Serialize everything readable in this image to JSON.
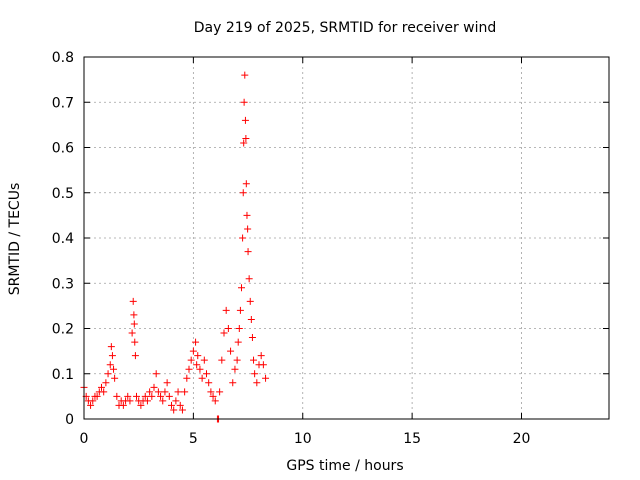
{
  "chart_data": {
    "type": "scatter",
    "title": "Day 219 of 2025, SRMTID for receiver wind",
    "xlabel": "GPS time / hours",
    "ylabel": "SRMTID / TECUs",
    "xlim": [
      0,
      24
    ],
    "ylim": [
      0,
      0.8
    ],
    "xticks": [
      0,
      5,
      10,
      15,
      20
    ],
    "xtick_labels": [
      "0",
      "5",
      "10",
      "15",
      "20"
    ],
    "yticks": [
      0,
      0.1,
      0.2,
      0.3,
      0.4,
      0.5,
      0.6,
      0.7,
      0.8
    ],
    "ytick_labels": [
      "0",
      "0.1",
      "0.2",
      "0.3",
      "0.4",
      "0.5",
      "0.6",
      "0.7",
      "0.8"
    ],
    "grid": true,
    "marker": "+",
    "color": "#ff0000",
    "series": [
      {
        "name": "wind",
        "x": [
          0.0,
          0.1,
          0.2,
          0.3,
          0.4,
          0.5,
          0.6,
          0.7,
          0.8,
          0.9,
          1.0,
          1.1,
          1.2,
          1.25,
          1.3,
          1.35,
          1.4,
          1.5,
          1.6,
          1.7,
          1.8,
          1.9,
          2.0,
          2.1,
          2.2,
          2.25,
          2.28,
          2.3,
          2.32,
          2.35,
          2.4,
          2.5,
          2.6,
          2.7,
          2.8,
          2.9,
          3.0,
          3.1,
          3.2,
          3.3,
          3.4,
          3.5,
          3.6,
          3.7,
          3.8,
          3.9,
          4.0,
          4.1,
          4.2,
          4.3,
          4.4,
          4.5,
          4.6,
          4.7,
          4.8,
          4.9,
          5.0,
          5.1,
          5.15,
          5.2,
          5.3,
          5.4,
          5.5,
          5.6,
          5.7,
          5.8,
          5.9,
          6.0,
          6.1,
          6.15,
          6.2,
          6.3,
          6.4,
          6.5,
          6.6,
          6.7,
          6.8,
          6.9,
          7.0,
          7.05,
          7.1,
          7.15,
          7.2,
          7.25,
          7.28,
          7.3,
          7.32,
          7.35,
          7.38,
          7.4,
          7.42,
          7.45,
          7.48,
          7.5,
          7.55,
          7.6,
          7.65,
          7.7,
          7.75,
          7.8,
          7.9,
          8.0,
          8.1,
          8.2,
          8.3
        ],
        "y": [
          0.07,
          0.05,
          0.04,
          0.03,
          0.04,
          0.05,
          0.05,
          0.06,
          0.07,
          0.06,
          0.08,
          0.1,
          0.12,
          0.16,
          0.14,
          0.11,
          0.09,
          0.05,
          0.03,
          0.04,
          0.03,
          0.04,
          0.05,
          0.04,
          0.19,
          0.26,
          0.23,
          0.21,
          0.17,
          0.14,
          0.05,
          0.04,
          0.03,
          0.04,
          0.05,
          0.04,
          0.06,
          0.05,
          0.07,
          0.1,
          0.06,
          0.05,
          0.04,
          0.06,
          0.08,
          0.05,
          0.03,
          0.02,
          0.04,
          0.06,
          0.03,
          0.02,
          0.06,
          0.09,
          0.11,
          0.13,
          0.15,
          0.17,
          0.12,
          0.14,
          0.11,
          0.09,
          0.13,
          0.1,
          0.08,
          0.06,
          0.05,
          0.04,
          0.0,
          0.0,
          0.06,
          0.13,
          0.19,
          0.24,
          0.2,
          0.15,
          0.08,
          0.11,
          0.13,
          0.17,
          0.2,
          0.24,
          0.29,
          0.4,
          0.5,
          0.61,
          0.7,
          0.76,
          0.66,
          0.62,
          0.52,
          0.45,
          0.42,
          0.37,
          0.31,
          0.26,
          0.22,
          0.18,
          0.13,
          0.1,
          0.08,
          0.12,
          0.14,
          0.12,
          0.09
        ]
      }
    ]
  }
}
